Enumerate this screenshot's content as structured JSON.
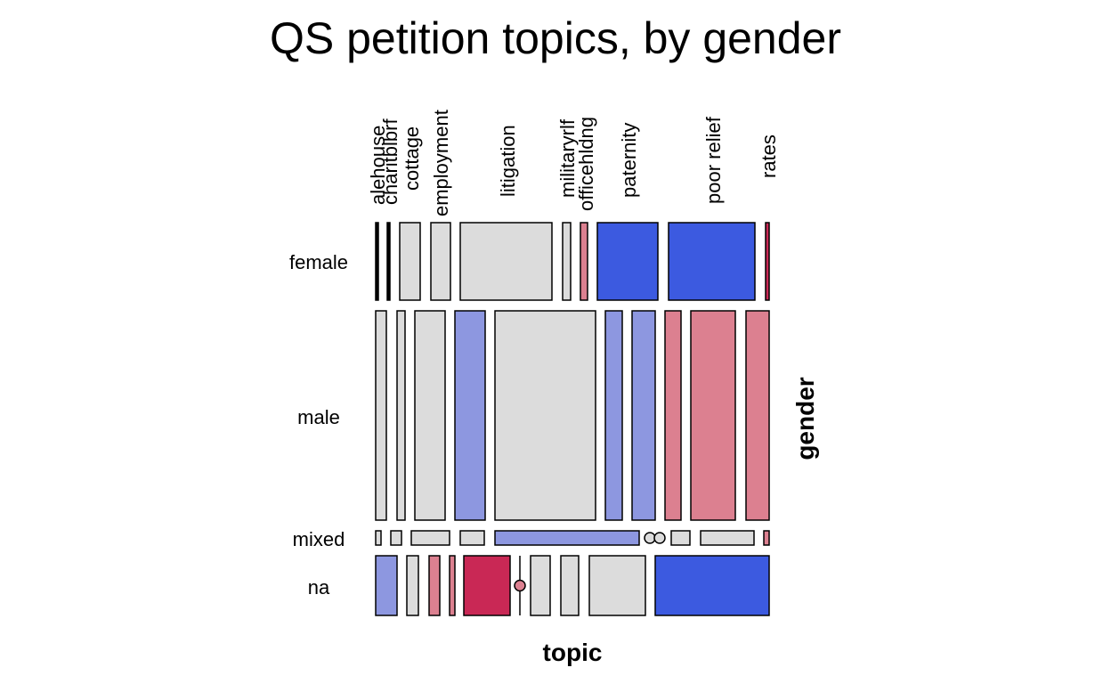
{
  "chart_data": {
    "type": "mosaic",
    "title": "QS petition topics, by gender",
    "xlabel": "topic",
    "ylabel": "gender",
    "categories": [
      "alehouse",
      "charitblbrf",
      "cottage",
      "employment",
      "litigation",
      "militaryrlf",
      "officehldng",
      "paternity",
      "poor relief",
      "rates"
    ],
    "rows": [
      "female",
      "male",
      "mixed",
      "na"
    ],
    "color_legend": {
      "strong_positive": "#3c5ae0",
      "positive": "#8d97e0",
      "neutral": "#dcdcdc",
      "negative": "#dc8090",
      "strong_negative": "#c92855"
    },
    "cells": [
      {
        "row": "female",
        "values": [
          0,
          0,
          1.0,
          1.0,
          4.6,
          0.5,
          0.4,
          3.0,
          4.3,
          0.2
        ],
        "shading": [
          "neutral",
          "neutral",
          "neutral",
          "neutral",
          "neutral",
          "neutral",
          "negative",
          "strong_positive",
          "strong_positive",
          "strong_negative"
        ]
      },
      {
        "row": "male",
        "values": [
          0.5,
          0.4,
          1.5,
          1.5,
          5.0,
          0.8,
          1.0,
          2.0,
          2.6,
          1.2
        ],
        "shading": [
          "neutral",
          "neutral",
          "neutral",
          "positive",
          "neutral",
          "positive",
          "positive",
          "negative",
          "negative",
          "negative"
        ]
      },
      {
        "row": "mixed",
        "values": [
          0.1,
          0.3,
          1.3,
          0.8,
          5.0,
          0,
          0,
          0.6,
          1.8,
          0.1
        ],
        "shading": [
          "neutral",
          "neutral",
          "neutral",
          "neutral",
          "positive",
          "neutral",
          "neutral",
          "neutral",
          "neutral",
          "negative"
        ]
      },
      {
        "row": "na",
        "values": [
          0.6,
          0.3,
          0.3,
          0.1,
          1.0,
          0,
          0.6,
          0.6,
          2.0,
          4.4
        ],
        "shading": [
          "positive",
          "neutral",
          "negative",
          "negative",
          "strong_negative",
          "negative",
          "neutral",
          "neutral",
          "neutral",
          "strong_positive"
        ]
      }
    ]
  }
}
